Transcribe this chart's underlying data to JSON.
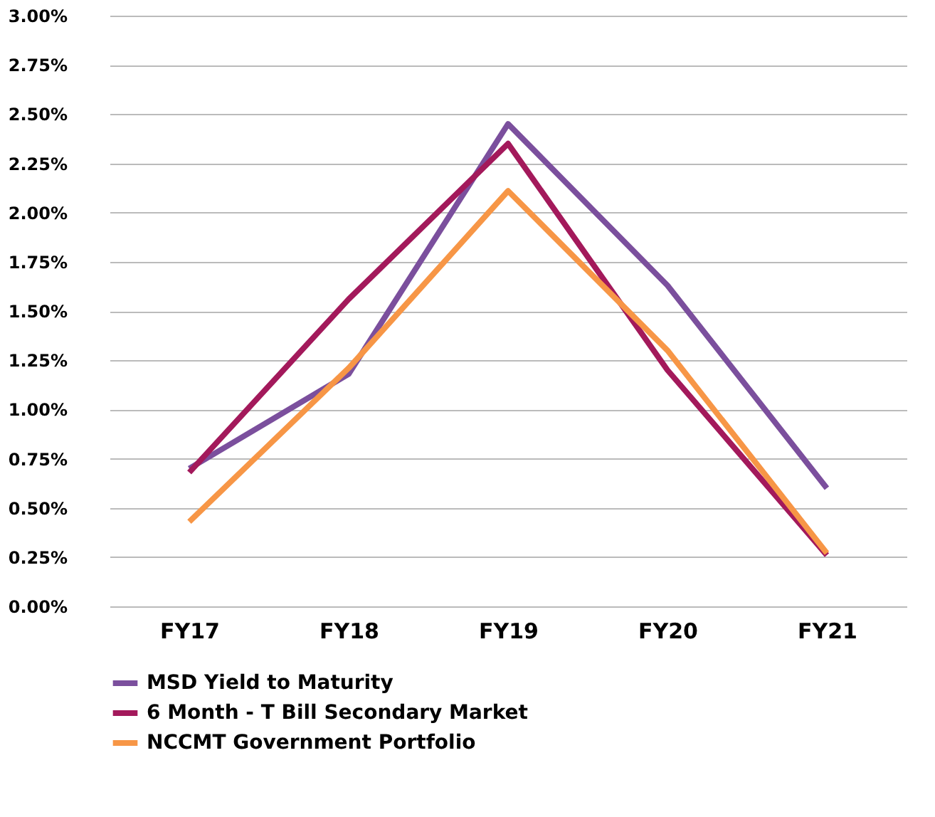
{
  "chart_data": {
    "type": "line",
    "categories": [
      "FY17",
      "FY18",
      "FY19",
      "FY20",
      "FY21"
    ],
    "series": [
      {
        "name": "MSD Yield to Maturity",
        "color": "#7b4f9d",
        "values": [
          0.7,
          1.18,
          2.45,
          1.63,
          0.6
        ]
      },
      {
        "name": "6 Month - T Bill Secondary Market",
        "color": "#a3195b",
        "values": [
          0.68,
          1.56,
          2.35,
          1.2,
          0.26
        ]
      },
      {
        "name": "NCCMT Government Portfolio",
        "color": "#f79646",
        "values": [
          0.43,
          1.21,
          2.11,
          1.3,
          0.27
        ]
      }
    ],
    "ylim": [
      0,
      3
    ],
    "yticks": [
      {
        "value": 0,
        "label": "0.00%"
      },
      {
        "value": 0.25,
        "label": "0.25%"
      },
      {
        "value": 0.5,
        "label": "0.50%"
      },
      {
        "value": 0.75,
        "label": "0.75%"
      },
      {
        "value": 1,
        "label": "1.00%"
      },
      {
        "value": 1.25,
        "label": "1.25%"
      },
      {
        "value": 1.5,
        "label": "1.50%"
      },
      {
        "value": 1.75,
        "label": "1.75%"
      },
      {
        "value": 2,
        "label": "2.00%"
      },
      {
        "value": 2.25,
        "label": "2.25%"
      },
      {
        "value": 2.5,
        "label": "2.50%"
      },
      {
        "value": 2.75,
        "label": "2.75%"
      },
      {
        "value": 3,
        "label": "3.00%"
      }
    ],
    "grid": "y",
    "legend": "bottom",
    "marker": "none",
    "line_style": "solid"
  }
}
